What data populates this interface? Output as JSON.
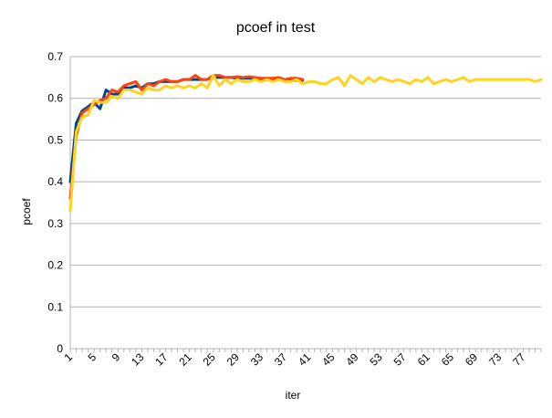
{
  "chart_data": {
    "type": "line",
    "title": "pcoef in test",
    "xlabel": "iter",
    "ylabel": "pcoef",
    "ylim": [
      0,
      0.7
    ],
    "yticks": [
      0,
      0.1,
      0.2,
      0.3,
      0.4,
      0.5,
      0.6,
      0.7
    ],
    "xlim": [
      1,
      80
    ],
    "xtick_labels": [
      "1",
      "5",
      "9",
      "13",
      "17",
      "21",
      "25",
      "29",
      "33",
      "37",
      "41",
      "45",
      "49",
      "53",
      "57",
      "61",
      "65",
      "69",
      "73",
      "77"
    ],
    "grid": "horizontal",
    "legend": "none",
    "series": [
      {
        "name": "series-blue",
        "color": "#004586",
        "x": [
          1,
          2,
          3,
          4,
          5,
          6,
          7,
          8,
          9,
          10,
          11,
          12,
          13,
          14,
          15,
          16,
          17,
          18,
          19,
          20,
          21,
          22,
          23,
          24,
          25,
          26,
          27,
          28,
          29,
          30,
          31,
          32,
          33,
          34,
          35,
          36,
          37,
          38,
          39,
          40
        ],
        "values": [
          0.4,
          0.54,
          0.57,
          0.58,
          0.59,
          0.575,
          0.62,
          0.61,
          0.61,
          0.625,
          0.625,
          0.63,
          0.625,
          0.635,
          0.635,
          0.64,
          0.64,
          0.64,
          0.64,
          0.645,
          0.645,
          0.645,
          0.645,
          0.645,
          0.65,
          0.65,
          0.65,
          0.65,
          0.648,
          0.648,
          0.648,
          0.648,
          0.645,
          0.645,
          0.645,
          0.645,
          0.645,
          0.643,
          0.643,
          0.643
        ]
      },
      {
        "name": "series-orange",
        "color": "#ff420e",
        "x": [
          1,
          2,
          3,
          4,
          5,
          6,
          7,
          8,
          9,
          10,
          11,
          12,
          13,
          14,
          15,
          16,
          17,
          18,
          19,
          20,
          21,
          22,
          23,
          24,
          25,
          26,
          27,
          28,
          29,
          30,
          31,
          32,
          33,
          34,
          35,
          36,
          37,
          38,
          39,
          40
        ],
        "values": [
          0.36,
          0.51,
          0.565,
          0.575,
          0.585,
          0.595,
          0.6,
          0.62,
          0.615,
          0.63,
          0.635,
          0.64,
          0.62,
          0.635,
          0.63,
          0.64,
          0.645,
          0.64,
          0.64,
          0.645,
          0.645,
          0.655,
          0.645,
          0.645,
          0.655,
          0.655,
          0.65,
          0.65,
          0.652,
          0.65,
          0.652,
          0.65,
          0.648,
          0.648,
          0.648,
          0.65,
          0.645,
          0.648,
          0.648,
          0.645
        ]
      },
      {
        "name": "series-yellow",
        "color": "#ffd320",
        "x": [
          1,
          2,
          3,
          4,
          5,
          6,
          7,
          8,
          9,
          10,
          11,
          12,
          13,
          14,
          15,
          16,
          17,
          18,
          19,
          20,
          21,
          22,
          23,
          24,
          25,
          26,
          27,
          28,
          29,
          30,
          31,
          32,
          33,
          34,
          35,
          36,
          37,
          38,
          39,
          40,
          41,
          42,
          43,
          44,
          45,
          46,
          47,
          48,
          49,
          50,
          51,
          52,
          53,
          54,
          55,
          56,
          57,
          58,
          59,
          60,
          61,
          62,
          63,
          64,
          65,
          66,
          67,
          68,
          69,
          70,
          71,
          72,
          73,
          74,
          75,
          76,
          77,
          78,
          79,
          80
        ],
        "values": [
          0.33,
          0.52,
          0.555,
          0.56,
          0.595,
          0.59,
          0.59,
          0.605,
          0.6,
          0.62,
          0.62,
          0.615,
          0.61,
          0.625,
          0.62,
          0.62,
          0.63,
          0.625,
          0.63,
          0.625,
          0.63,
          0.625,
          0.635,
          0.625,
          0.655,
          0.63,
          0.645,
          0.635,
          0.645,
          0.64,
          0.64,
          0.645,
          0.64,
          0.645,
          0.64,
          0.645,
          0.64,
          0.64,
          0.645,
          0.635,
          0.64,
          0.64,
          0.635,
          0.635,
          0.645,
          0.65,
          0.63,
          0.655,
          0.645,
          0.635,
          0.65,
          0.64,
          0.65,
          0.645,
          0.64,
          0.645,
          0.64,
          0.635,
          0.645,
          0.64,
          0.65,
          0.635,
          0.64,
          0.645,
          0.64,
          0.645,
          0.65,
          0.64,
          0.645,
          0.645,
          0.645,
          0.645,
          0.645,
          0.645,
          0.645,
          0.645,
          0.645,
          0.645,
          0.64,
          0.645
        ]
      }
    ]
  }
}
